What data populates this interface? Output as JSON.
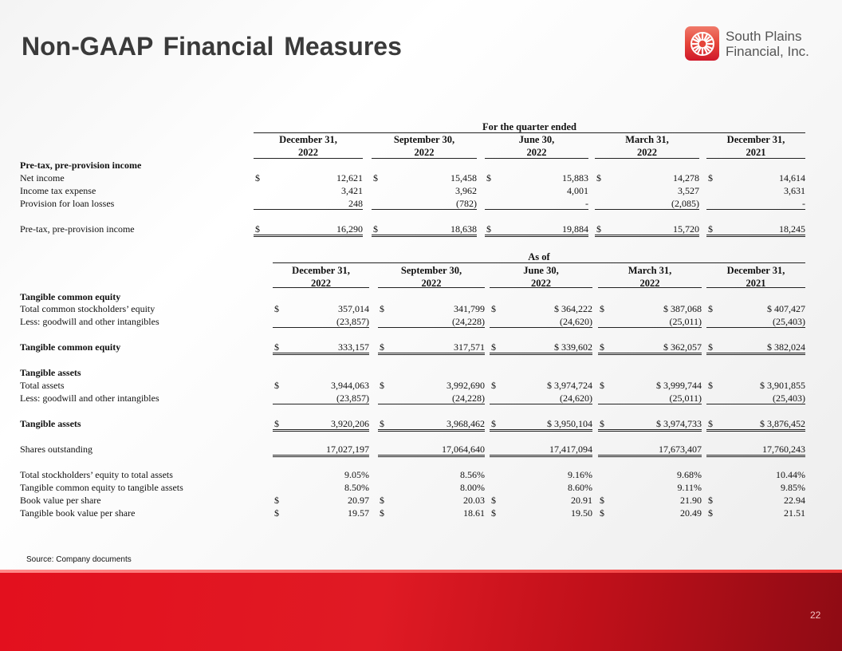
{
  "title": "Non-GAAP Financial Measures",
  "logo": {
    "line1": "South Plains",
    "line2": "Financial, Inc."
  },
  "colors": {
    "brand_red": "#e3101e",
    "title": "#3a3a3a"
  },
  "section1": {
    "caption": "For the quarter ended",
    "columns": [
      [
        "December 31,",
        "2022"
      ],
      [
        "September 30,",
        "2022"
      ],
      [
        "June 30,",
        "2022"
      ],
      [
        "March 31,",
        "2022"
      ],
      [
        "December 31,",
        "2021"
      ]
    ],
    "rows": [
      {
        "label": "Pre-tax, pre-provision income",
        "bold": true,
        "values": null
      },
      {
        "label": "Net income",
        "dollar": true,
        "values": [
          "12,621",
          "15,458",
          "15,883",
          "14,278",
          "14,614"
        ]
      },
      {
        "label": "Income tax expense",
        "values": [
          "3,421",
          "3,962",
          "4,001",
          "3,527",
          "3,631"
        ]
      },
      {
        "label": "Provision for loan losses",
        "values": [
          "248",
          "(782)",
          "-",
          "(2,085)",
          "-"
        ],
        "under": "single"
      },
      {
        "label": "Pre-tax, pre-provision income",
        "dollar": true,
        "values": [
          "16,290",
          "18,638",
          "19,884",
          "15,720",
          "18,245"
        ],
        "under": "double",
        "gap": true
      }
    ]
  },
  "section2": {
    "caption": "As of",
    "columns": [
      [
        "December 31,",
        "2022"
      ],
      [
        "September 30,",
        "2022"
      ],
      [
        "June 30,",
        "2022"
      ],
      [
        "March 31,",
        "2022"
      ],
      [
        "December 31,",
        "2021"
      ]
    ],
    "rows": [
      {
        "label": "Tangible common  equity",
        "bold": true,
        "values": null
      },
      {
        "label": "Total common stockholders’ equity",
        "dollar": true,
        "values": [
          "357,014",
          "341,799",
          "$ 364,222",
          "$ 387,068",
          "$ 407,427"
        ]
      },
      {
        "label": "Less:  goodwill and other intangibles",
        "values": [
          "(23,857)",
          "(24,228)",
          "(24,620)",
          "(25,011)",
          "(25,403)"
        ],
        "under": "single"
      },
      {
        "label": "Tangible common  equity",
        "bold": true,
        "dollar": true,
        "values": [
          "333,157",
          "317,571",
          "$ 339,602",
          "$ 362,057",
          "$ 382,024"
        ],
        "under": "double",
        "gap": true
      },
      {
        "label": "Tangible assets",
        "bold": true,
        "values": null,
        "gap": true
      },
      {
        "label": "Total assets",
        "dollar": true,
        "values": [
          "3,944,063",
          "3,992,690",
          "$ 3,974,724",
          "$ 3,999,744",
          "$ 3,901,855"
        ]
      },
      {
        "label": "Less:  goodwill and other intangibles",
        "values": [
          "(23,857)",
          "(24,228)",
          "(24,620)",
          "(25,011)",
          "(25,403)"
        ],
        "under": "single"
      },
      {
        "label": "Tangible assets",
        "bold": true,
        "dollar": true,
        "values": [
          "3,920,206",
          "3,968,462",
          "$ 3,950,104",
          "$ 3,974,733",
          "$ 3,876,452"
        ],
        "under": "double",
        "gap": true
      },
      {
        "label": "Shares outstanding",
        "values": [
          "17,027,197",
          "17,064,640",
          "17,417,094",
          "17,673,407",
          "17,760,243"
        ],
        "under": "double",
        "gap": true
      },
      {
        "label": "Total stockholders’ equity to total assets",
        "values": [
          "9.05%",
          "8.56%",
          "9.16%",
          "9.68%",
          "10.44%"
        ],
        "gap": true
      },
      {
        "label": "Tangible common  equity to tangible assets",
        "values": [
          "8.50%",
          "8.00%",
          "8.60%",
          "9.11%",
          "9.85%"
        ]
      },
      {
        "label": "Book value per share",
        "dollar": true,
        "values": [
          "20.97",
          "20.03",
          "20.91",
          "21.90",
          "22.94"
        ]
      },
      {
        "label": "Tangible book value per share",
        "dollar": true,
        "values": [
          "19.57",
          "18.61",
          "19.50",
          "20.49",
          "21.51"
        ]
      }
    ]
  },
  "dollar_sign": "$",
  "source": "Source: Company documents",
  "page_number": "22"
}
